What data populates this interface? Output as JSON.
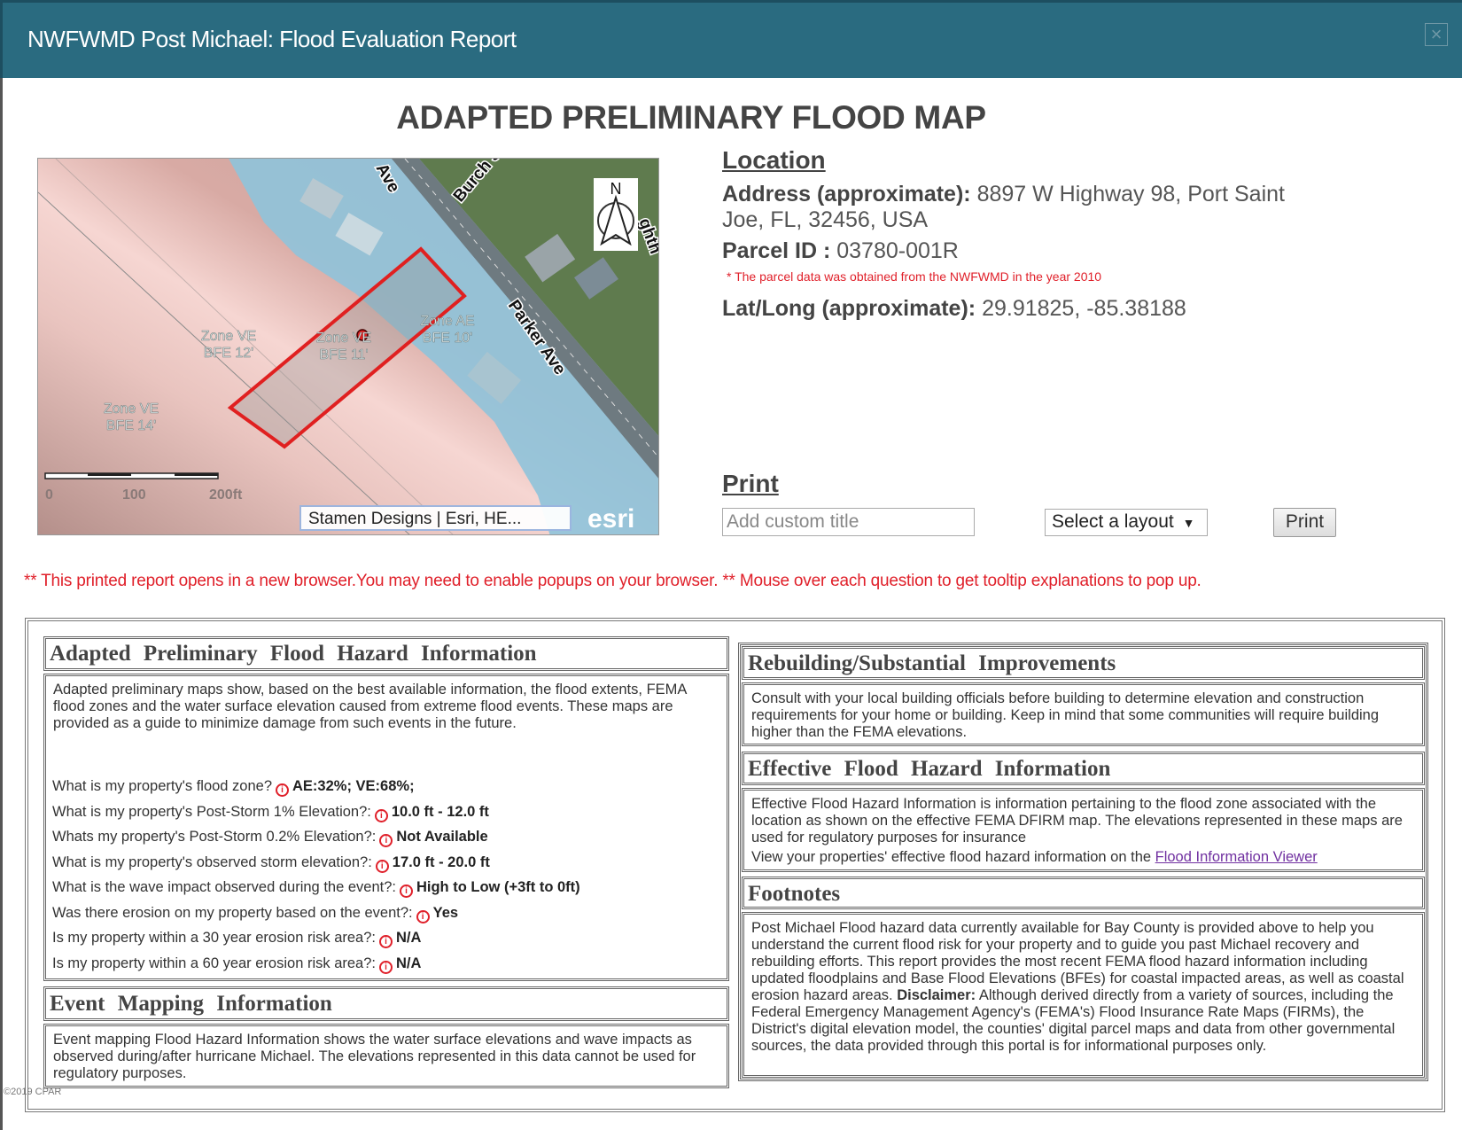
{
  "header": {
    "title": "NWFWMD Post Michael: Flood Evaluation Report",
    "close_icon": "close-icon"
  },
  "page_title": "ADAPTED PRELIMINARY FLOOD MAP",
  "map": {
    "zone_labels": [
      {
        "zone": "Zone VE",
        "bfe": "BFE 12'"
      },
      {
        "zone": "Zone VE",
        "bfe": "BFE 11'"
      },
      {
        "zone": "Zone AE",
        "bfe": "BFE 10'"
      },
      {
        "zone": "Zone VE",
        "bfe": "BFE 14'"
      }
    ],
    "streets": [
      "Ave",
      "Burch St",
      "Parker Ave",
      "ghth"
    ],
    "north": "N",
    "scale_labels": [
      "0",
      "100",
      "200ft"
    ],
    "attribution": "Stamen Designs | Esri, HE...",
    "logo": "esri",
    "colors": {
      "parcel": "#e02020",
      "zone_ae": "#6fb8d8",
      "zone_ve": "#e8b4b0"
    }
  },
  "location": {
    "heading": "Location",
    "address_label": "Address (approximate):",
    "address_line1": "8897 W Highway 98, Port Saint",
    "address_line2": "Joe, FL, 32456, USA",
    "parcel_label": "Parcel ID :",
    "parcel_value": "03780-001R",
    "parcel_note": "* The parcel data was obtained from the NWFWMD in the year 2010",
    "latlong_label": "Lat/Long (approximate):",
    "latlong_value": "29.91825, -85.38188"
  },
  "print": {
    "heading": "Print",
    "title_placeholder": "Add custom title",
    "layout_select": "Select a layout",
    "print_label": "Print"
  },
  "notice": "** This printed report opens in a new browser.You may need to enable popups on your browser. ** Mouse over each question to get tooltip explanations to pop up.",
  "adapted": {
    "heading": "Adapted Preliminary Flood Hazard Information",
    "body": "Adapted preliminary maps show, based on the best available information, the flood extents, FEMA flood zones and the water surface elevation caused from extreme flood events. These maps are provided as a guide to minimize damage from such events in the future.",
    "questions": [
      {
        "q": "What is my property's flood zone?",
        "a": "AE:32%; VE:68%;"
      },
      {
        "q": "What is my property's Post-Storm 1% Elevation?:",
        "a": "10.0 ft - 12.0 ft"
      },
      {
        "q": "Whats my property's Post-Storm 0.2% Elevation?:",
        "a": "Not Available"
      },
      {
        "q": "What is my property's observed storm elevation?:",
        "a": "17.0 ft - 20.0 ft"
      },
      {
        "q": "What is the wave impact observed during the event?:",
        "a": "High to Low (+3ft to 0ft)"
      },
      {
        "q": "Was there erosion on my property based on the event?:",
        "a": "Yes"
      },
      {
        "q": "Is my property within a 30 year erosion risk area?:",
        "a": "N/A"
      },
      {
        "q": "Is my property within a 60 year erosion risk area?:",
        "a": "N/A"
      }
    ]
  },
  "event": {
    "heading": "Event Mapping Information",
    "body": "Event mapping Flood Hazard Information shows the water surface elevations and wave impacts as observed during/after hurricane Michael. The elevations represented in this data cannot be used for regulatory purposes."
  },
  "rebuilding": {
    "heading": "Rebuilding/Substantial Improvements",
    "body": "Consult with your local building officials before building to determine elevation and construction requirements for your home or building. Keep in mind that some communities will require building higher than the FEMA elevations."
  },
  "effective": {
    "heading": "Effective Flood Hazard Information",
    "body": "Effective Flood Hazard Information is information pertaining to the flood zone associated with the location as shown on the effective FEMA DFIRM map. The elevations represented in these maps are used for regulatory purposes for insurance",
    "view_text": "View your properties' effective flood hazard information on the ",
    "link": "Flood Information Viewer"
  },
  "footnotes": {
    "heading": "Footnotes",
    "body1": "Post Michael Flood hazard data currently available for Bay County is provided above to help you understand the current flood risk for your property and to guide you past Michael recovery and rebuilding efforts. This report provides the most recent FEMA flood hazard information including updated floodplains and Base Flood Elevations (BFEs) for coastal impacted areas, as well as coastal erosion hazard areas. ",
    "disclaimer_label": "Disclaimer:",
    "body2": " Although derived directly from a variety of sources, including the Federal Emergency Management Agency's (FEMA's) Flood Insurance Rate Maps (FIRMs), the District's digital elevation model, the counties' digital parcel maps and data from other governmental sources, the data provided through this portal is for informational purposes only."
  },
  "watermark": "©2019 CPAR"
}
